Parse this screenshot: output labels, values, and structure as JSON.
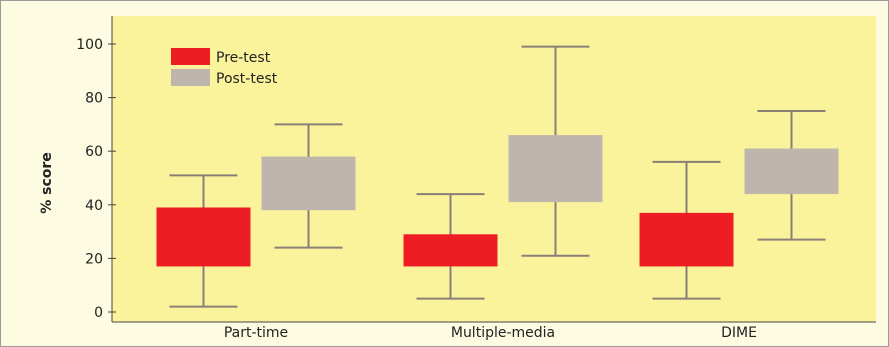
{
  "chart_data": {
    "type": "box",
    "title": "",
    "xlabel": "",
    "ylabel": "% score",
    "ylim": [
      0,
      100
    ],
    "yticks": [
      0,
      20,
      40,
      60,
      80,
      100
    ],
    "grid": false,
    "legend_position": "top-left",
    "categories": [
      "Part-time",
      "Multiple-media",
      "DIME"
    ],
    "series": [
      {
        "name": "Pre-test",
        "color": "#ee1d24",
        "boxes": [
          {
            "min": 2,
            "q1": 17,
            "q3": 39,
            "max": 51
          },
          {
            "min": 5,
            "q1": 17,
            "q3": 29,
            "max": 44
          },
          {
            "min": 5,
            "q1": 17,
            "q3": 37,
            "max": 56
          }
        ]
      },
      {
        "name": "Post-test",
        "color": "#beb5ad",
        "boxes": [
          {
            "min": 24,
            "q1": 38,
            "q3": 58,
            "max": 70
          },
          {
            "min": 21,
            "q1": 41,
            "q3": 66,
            "max": 99
          },
          {
            "min": 27,
            "q1": 44,
            "q3": 61,
            "max": 75
          }
        ]
      }
    ]
  },
  "colors": {
    "plot_background": "#fbf39c",
    "page_background": "#fdfbe2",
    "whisker": "#8a7f77",
    "axis": "#444444"
  }
}
